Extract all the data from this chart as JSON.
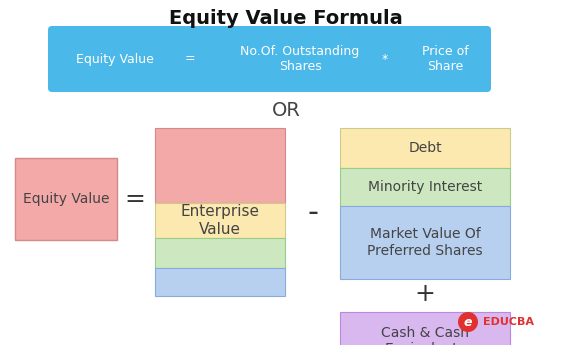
{
  "title": "Equity Value Formula",
  "title_fontsize": 14,
  "title_fontweight": "bold",
  "bg_color": "#ffffff",
  "formula1_bg": "#4ab8e8",
  "formula1_text_color": "#ffffff",
  "formula1_parts": [
    "Equity Value",
    "=",
    "No.Of. Outstanding\nShares",
    "*",
    "Price of\nShare"
  ],
  "formula1_fontsize": 9,
  "or_text": "OR",
  "or_fontsize": 14,
  "equity_value_box": {
    "label": "Equity Value",
    "color": "#f4a9a9",
    "edge_color": "#d48888",
    "text_color": "#444444",
    "fontsize": 10
  },
  "equals_sign": "=",
  "minus_sign": "-",
  "plus_sign": "+",
  "operator_fontsize": 18,
  "operator_color": "#333333",
  "enterprise_box": {
    "label": "Enterprise\nValue",
    "colors": [
      "#f4a9a9",
      "#fce9b0",
      "#cde8c0",
      "#b8d0f0"
    ],
    "text_color": "#444444",
    "fontsize": 11
  },
  "right_boxes": [
    {
      "label": "Debt",
      "color": "#fce9b0",
      "edge_color": "#cccc88",
      "text_color": "#444444",
      "fontsize": 10
    },
    {
      "label": "Minority Interest",
      "color": "#cde8c0",
      "edge_color": "#99cc88",
      "text_color": "#444444",
      "fontsize": 10
    },
    {
      "label": "Market Value Of\nPreferred Shares",
      "color": "#b8d0f0",
      "edge_color": "#88aadd",
      "text_color": "#444444",
      "fontsize": 10
    },
    {
      "label": "Cash & Cash\nEquivalents",
      "color": "#d9b8f0",
      "edge_color": "#bb88dd",
      "text_color": "#444444",
      "fontsize": 10
    }
  ],
  "educba_text": "EDUCBA",
  "educba_color": "#e03030",
  "educba_fontsize": 8
}
